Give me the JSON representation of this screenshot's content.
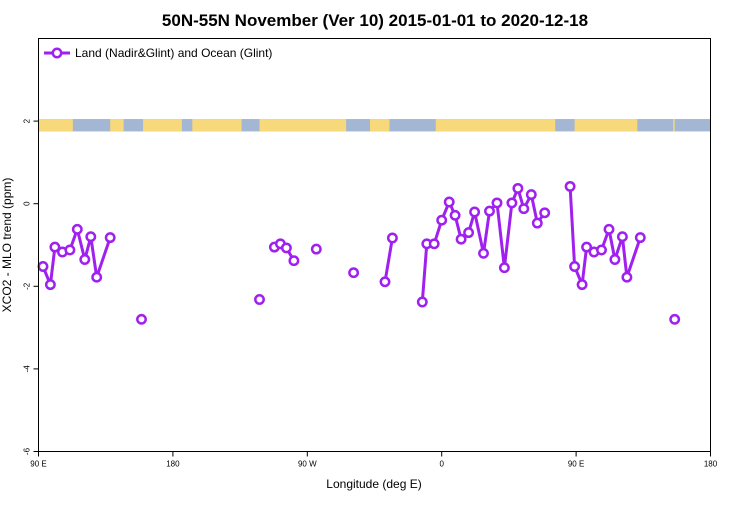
{
  "chart_data": {
    "type": "line",
    "title": "50N-55N November (Ver 10)   2015-01-01 to 2020-12-18",
    "xlabel": "Longitude (deg E)",
    "ylabel": "XCO2 - MLO trend (ppm)",
    "xlim": [
      90,
      540
    ],
    "ylim": [
      -6,
      4
    ],
    "x_ticks": [
      {
        "value": 90,
        "label": "90 E"
      },
      {
        "value": 180,
        "label": "180"
      },
      {
        "value": 270,
        "label": "90 W"
      },
      {
        "value": 360,
        "label": "0"
      },
      {
        "value": 450,
        "label": "90 E"
      },
      {
        "value": 540,
        "label": "180"
      }
    ],
    "y_ticks": [
      {
        "value": -6,
        "label": "-6"
      },
      {
        "value": -4,
        "label": "-4"
      },
      {
        "value": -2,
        "label": "-2"
      },
      {
        "value": 0,
        "label": "0"
      },
      {
        "value": 2,
        "label": "2"
      }
    ],
    "grid": false,
    "legend_position": "top-left",
    "surface_band": {
      "y_range": [
        1.75,
        2.05
      ],
      "land_color": "#f7d87a",
      "ocean_color": "#a3b7d4"
    },
    "series": [
      {
        "name": "Land (Nadir&Glint) and Ocean (Glint)",
        "color": "#a020f0",
        "segments": [
          [
            [
              93,
              -1.52
            ],
            [
              98,
              -1.96
            ],
            [
              101,
              -1.05
            ],
            [
              106,
              -1.17
            ],
            [
              111,
              -1.12
            ],
            [
              116,
              -0.62
            ],
            [
              121,
              -1.35
            ],
            [
              125,
              -0.8
            ],
            [
              129,
              -1.78
            ],
            [
              138,
              -0.82
            ]
          ],
          [
            [
              159,
              -2.8
            ]
          ],
          [
            [
              238,
              -2.32
            ]
          ],
          [
            [
              248,
              -1.05
            ],
            [
              252,
              -0.97
            ],
            [
              256,
              -1.07
            ],
            [
              261,
              -1.38
            ]
          ],
          [
            [
              276,
              -1.1
            ]
          ],
          [
            [
              301,
              -1.67
            ]
          ],
          [
            [
              322,
              -1.89
            ],
            [
              327,
              -0.83
            ]
          ],
          [
            [
              347,
              -2.38
            ],
            [
              350,
              -0.97
            ],
            [
              355,
              -0.97
            ],
            [
              360,
              -0.4
            ],
            [
              365,
              0.04
            ],
            [
              369,
              -0.28
            ],
            [
              373,
              -0.86
            ],
            [
              378,
              -0.7
            ],
            [
              382,
              -0.2
            ],
            [
              388,
              -1.2
            ],
            [
              392,
              -0.18
            ],
            [
              397,
              0.02
            ],
            [
              402,
              -1.55
            ],
            [
              407,
              0.02
            ],
            [
              411,
              0.37
            ],
            [
              415,
              -0.12
            ],
            [
              420,
              0.22
            ],
            [
              424,
              -0.47
            ],
            [
              429,
              -0.22
            ]
          ],
          [
            [
              446,
              0.42
            ],
            [
              449,
              -1.52
            ],
            [
              454,
              -1.96
            ],
            [
              457,
              -1.05
            ],
            [
              462,
              -1.17
            ],
            [
              467,
              -1.12
            ],
            [
              472,
              -0.62
            ],
            [
              476,
              -1.35
            ],
            [
              481,
              -0.8
            ],
            [
              484,
              -1.78
            ],
            [
              493,
              -0.82
            ]
          ],
          [
            [
              516,
              -2.8
            ]
          ]
        ]
      }
    ]
  }
}
